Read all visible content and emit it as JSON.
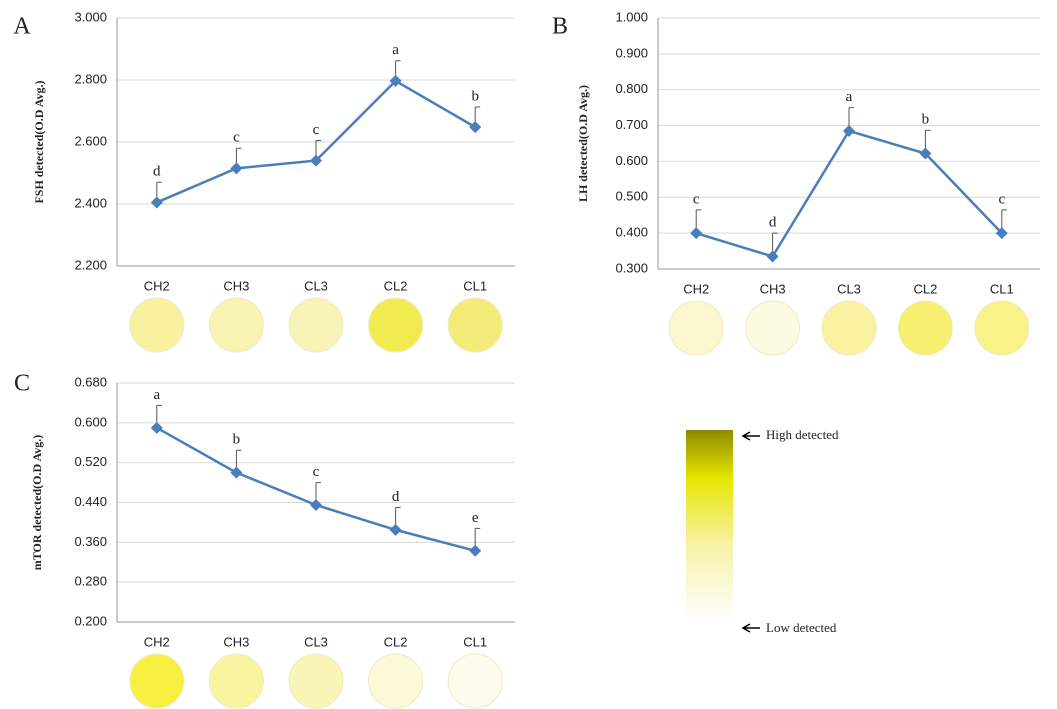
{
  "chart_data": [
    {
      "type": "line",
      "label": "A",
      "y_label": "FSH  detected(O.D Avg.)",
      "categories": [
        "CH2",
        "CH3",
        "CL3",
        "CL2",
        "CL1"
      ],
      "series": [
        {
          "color": "#4a7ebb",
          "values": [
            2.405,
            2.515,
            2.54,
            2.797,
            2.648
          ],
          "errors": [
            0.065,
            0.065,
            0.065,
            0.065,
            0.065
          ]
        }
      ],
      "annotations": [
        "d",
        "c",
        "c",
        "a",
        "b"
      ],
      "ylim": [
        2.2,
        3.0
      ],
      "yticks": [
        {
          "value": 2.2,
          "label": "2.200"
        },
        {
          "value": 2.4,
          "label": "2.400"
        },
        {
          "value": 2.6,
          "label": "2.600"
        },
        {
          "value": 2.8,
          "label": "2.800"
        },
        {
          "value": 3.0,
          "label": "3.000"
        }
      ],
      "grid": true,
      "well_colors": [
        "#f7f1a0",
        "#f8f3b0",
        "#f8f4b8",
        "#f2eb50",
        "#f3ec78"
      ]
    },
    {
      "type": "line",
      "label": "B",
      "y_label": "LH  detected(O.D Avg.)",
      "categories": [
        "CH2",
        "CH3",
        "CL3",
        "CL2",
        "CL1"
      ],
      "series": [
        {
          "color": "#4a7ebb",
          "values": [
            0.4,
            0.335,
            0.685,
            0.622,
            0.4
          ],
          "errors": [
            0.065,
            0.065,
            0.065,
            0.065,
            0.065
          ]
        }
      ],
      "annotations": [
        "c",
        "d",
        "a",
        "b",
        "c"
      ],
      "ylim": [
        0.3,
        1.0
      ],
      "yticks": [
        {
          "value": 0.3,
          "label": "0.300"
        },
        {
          "value": 0.4,
          "label": "0.400"
        },
        {
          "value": 0.5,
          "label": "0.500"
        },
        {
          "value": 0.6,
          "label": "0.600"
        },
        {
          "value": 0.7,
          "label": "0.700"
        },
        {
          "value": 0.8,
          "label": "0.800"
        },
        {
          "value": 0.9,
          "label": "0.900"
        },
        {
          "value": 1.0,
          "label": "1.000"
        }
      ],
      "grid": true,
      "well_colors": [
        "#fbf8d0",
        "#fcfae0",
        "#f9f2a0",
        "#f6ef70",
        "#f8f288"
      ]
    },
    {
      "type": "line",
      "label": "C",
      "y_label": "mTOR  detected(O.D Avg.)",
      "categories": [
        "CH2",
        "CH3",
        "CL3",
        "CL2",
        "CL1"
      ],
      "series": [
        {
          "color": "#4a7ebb",
          "values": [
            0.59,
            0.5,
            0.435,
            0.385,
            0.343
          ],
          "errors": [
            0.045,
            0.045,
            0.045,
            0.045,
            0.045
          ]
        }
      ],
      "annotations": [
        "a",
        "b",
        "c",
        "d",
        "e"
      ],
      "ylim": [
        0.2,
        0.68
      ],
      "yticks": [
        {
          "value": 0.2,
          "label": "0.200"
        },
        {
          "value": 0.28,
          "label": "0.280"
        },
        {
          "value": 0.36,
          "label": "0.360"
        },
        {
          "value": 0.44,
          "label": "0.440"
        },
        {
          "value": 0.52,
          "label": "0.520"
        },
        {
          "value": 0.6,
          "label": "0.600"
        },
        {
          "value": 0.68,
          "label": "0.680"
        }
      ],
      "grid": true,
      "well_colors": [
        "#f7f040",
        "#f8f4a0",
        "#f9f6b8",
        "#fbf9d8",
        "#fdfcec"
      ]
    }
  ],
  "color_scale": {
    "high": "High detected",
    "low": "Low detected"
  }
}
